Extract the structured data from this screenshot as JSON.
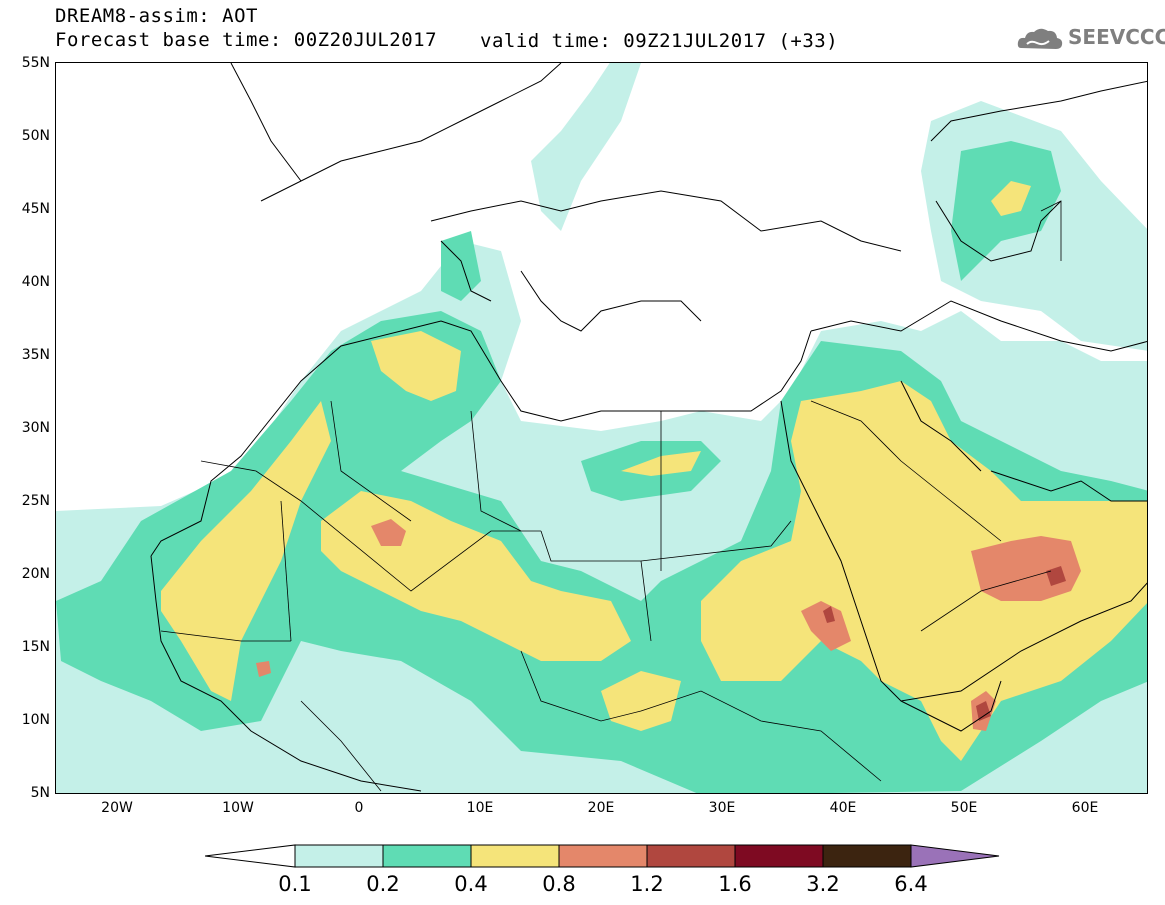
{
  "title": {
    "line1": "DREAM8-assim: AOT",
    "line2": "Forecast base time: 00Z20JUL2017",
    "valid": "valid time: 09Z21JUL2017 (+33)"
  },
  "logo": {
    "text": "SEEVCCC"
  },
  "axes": {
    "lat_labels": [
      "55N",
      "50N",
      "45N",
      "40N",
      "35N",
      "30N",
      "25N",
      "20N",
      "15N",
      "10N",
      "5N"
    ],
    "lon_labels": [
      "20W",
      "10W",
      "0",
      "10E",
      "20E",
      "30E",
      "40E",
      "50E",
      "60E"
    ]
  },
  "colorbar": {
    "labels": [
      "0.1",
      "0.2",
      "0.4",
      "0.8",
      "1.2",
      "1.6",
      "3.2",
      "6.4"
    ],
    "colors": [
      "#c4f0e8",
      "#5fdcb4",
      "#f5e47a",
      "#e4876a",
      "#b0473f",
      "#7e0a22",
      "#3c2410",
      "#9a72b8"
    ]
  }
}
